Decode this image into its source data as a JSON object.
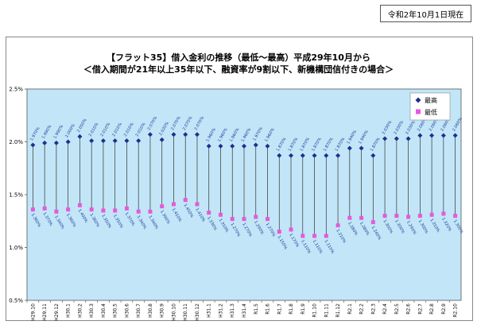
{
  "header": {
    "date": "令和2年10月1日現在"
  },
  "chart_data": {
    "type": "line",
    "title": "【フラット35】借入金利の推移（最低～最高）平成29年10月から",
    "subtitle": "＜借入期間が21年以上35年以下、融資率が9割以下、新機構団信付きの場合＞",
    "categories": [
      "H29.10",
      "H29.11",
      "H29.12",
      "H30.1",
      "H30.2",
      "H30.3",
      "H30.4",
      "H30.5",
      "H30.6",
      "H30.7",
      "H30.8",
      "H30.9",
      "H30.10",
      "H30.11",
      "H30.12",
      "H31.1",
      "H31.2",
      "H31.3",
      "H31.4",
      "R1.5",
      "R1.6",
      "R1.7",
      "R1.8",
      "R1.9",
      "R1.10",
      "R1.11",
      "R1.12",
      "R2.1",
      "R2.2",
      "R2.3",
      "R2.4",
      "R2.5",
      "R2.6",
      "R2.7",
      "R2.8",
      "R2.9",
      "R2.10"
    ],
    "ylim": [
      0.5,
      2.5
    ],
    "yticks": [
      "0.5%",
      "1.0%",
      "1.5%",
      "2.0%",
      "2.5%"
    ],
    "grid": false,
    "legend": "top-right",
    "series": [
      {
        "name": "最高",
        "color": "#1f2f8f",
        "values": [
          1.97,
          1.99,
          1.99,
          2.0,
          2.05,
          2.01,
          2.01,
          2.01,
          2.01,
          2.01,
          2.07,
          2.02,
          2.07,
          2.07,
          2.07,
          1.96,
          1.96,
          1.96,
          1.96,
          1.97,
          1.96,
          1.87,
          1.87,
          1.87,
          1.87,
          1.87,
          1.87,
          1.94,
          1.94,
          1.87,
          2.03,
          2.03,
          2.03,
          2.06,
          2.06,
          2.06,
          2.06
        ],
        "labels": [
          "1.970%",
          "1.990%",
          "1.990%",
          "2.000%",
          "2.050%",
          "2.010%",
          "2.010%",
          "2.010%",
          "2.010%",
          "2.010%",
          "2.070%",
          "2.020%",
          "2.070%",
          "2.070%",
          "2.070%",
          "1.960%",
          "1.960%",
          "1.960%",
          "1.960%",
          "1.970%",
          "1.960%",
          "1.870%",
          "1.870%",
          "1.870%",
          "1.870%",
          "1.870%",
          "1.870%",
          "1.940%",
          "1.940%",
          "1.870%",
          "2.030%",
          "2.030%",
          "2.030%",
          "2.060%",
          "2.060%",
          "2.060%",
          "2.060%"
        ]
      },
      {
        "name": "最低",
        "color": "#e65ad9",
        "values": [
          1.36,
          1.37,
          1.34,
          1.36,
          1.4,
          1.36,
          1.35,
          1.35,
          1.37,
          1.34,
          1.34,
          1.39,
          1.41,
          1.45,
          1.41,
          1.33,
          1.31,
          1.27,
          1.27,
          1.29,
          1.27,
          1.15,
          1.17,
          1.11,
          1.11,
          1.11,
          1.21,
          1.28,
          1.28,
          1.24,
          1.3,
          1.3,
          1.29,
          1.3,
          1.31,
          1.32,
          1.3
        ],
        "labels": [
          "1.360%",
          "1.370%",
          "1.340%",
          "1.360%",
          "1.400%",
          "1.360%",
          "1.350%",
          "1.350%",
          "1.370%",
          "1.340%",
          "1.340%",
          "1.390%",
          "1.410%",
          "1.450%",
          "1.410%",
          "1.330%",
          "1.310%",
          "1.270%",
          "1.270%",
          "1.290%",
          "1.270%",
          "1.150%",
          "1.170%",
          "1.110%",
          "1.110%",
          "1.110%",
          "1.210%",
          "1.280%",
          "1.280%",
          "1.240%",
          "1.300%",
          "1.300%",
          "1.290%",
          "1.300%",
          "1.310%",
          "1.320%",
          "1.300%"
        ]
      }
    ]
  }
}
